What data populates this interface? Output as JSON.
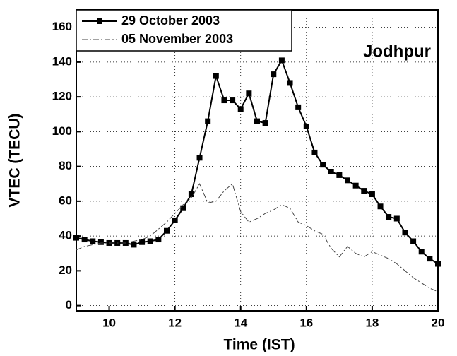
{
  "chart_data": {
    "type": "line",
    "x_label": "Time (IST)",
    "y_label": "VTEC (TECU)",
    "annotation": "Jodhpur",
    "xlim": [
      9,
      20
    ],
    "ylim": [
      -3,
      170
    ],
    "xticks": [
      10,
      12,
      14,
      16,
      18,
      20
    ],
    "yticks": [
      0,
      20,
      40,
      60,
      80,
      100,
      120,
      140,
      160
    ],
    "grid": true,
    "legend": "upper left",
    "x": [
      9,
      9.25,
      9.5,
      9.75,
      10,
      10.25,
      10.5,
      10.75,
      11,
      11.25,
      11.5,
      11.75,
      12,
      12.25,
      12.5,
      12.75,
      13,
      13.25,
      13.5,
      13.75,
      14,
      14.25,
      14.5,
      14.75,
      15,
      15.25,
      15.5,
      15.75,
      16,
      16.25,
      16.5,
      16.75,
      17,
      17.25,
      17.5,
      17.75,
      18,
      18.25,
      18.5,
      18.75,
      19,
      19.25,
      19.5,
      19.75,
      20
    ],
    "series": [
      {
        "name": "29 October 2003",
        "color": "#000000",
        "style": "solid-square",
        "values": [
          39,
          38,
          37,
          36.5,
          36,
          36,
          36,
          35,
          36.5,
          37,
          38,
          43,
          49,
          56,
          64,
          85,
          106,
          132,
          118,
          118,
          113,
          122,
          106,
          105,
          133,
          141,
          128,
          114,
          103,
          88,
          81,
          77,
          75,
          72,
          69,
          66,
          64,
          57,
          51,
          50,
          42,
          37,
          31,
          27,
          24
        ]
      },
      {
        "name": "05 November 2003",
        "color": "#444444",
        "style": "dash-dot",
        "values": [
          32,
          34,
          35,
          36,
          36,
          36,
          36,
          37,
          38,
          40,
          44,
          48,
          53,
          58,
          62,
          70,
          59,
          60,
          66,
          70,
          54,
          48,
          50,
          53,
          55,
          58,
          56,
          48,
          46,
          43,
          41,
          33,
          28,
          34,
          30,
          28,
          31,
          29,
          27,
          24,
          20,
          16,
          13,
          10,
          8
        ]
      }
    ]
  }
}
